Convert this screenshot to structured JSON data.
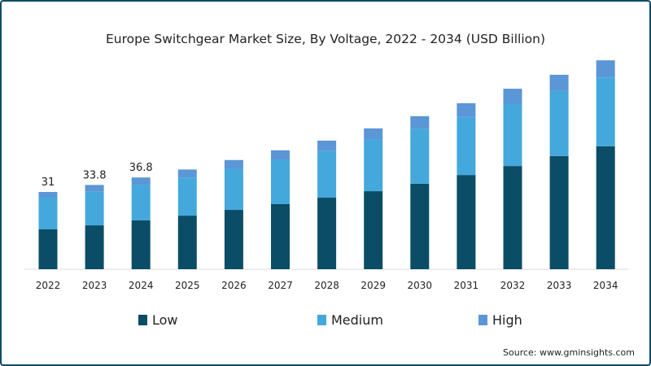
{
  "chart_data": {
    "type": "bar",
    "stacked": true,
    "title": "Europe Switchgear Market Size, By Voltage, 2022 - 2034 (USD Billion)",
    "xlabel": "",
    "ylabel": "",
    "ylim": [
      0,
      95
    ],
    "grid": false,
    "legend_position": "bottom",
    "categories": [
      "2022",
      "2023",
      "2024",
      "2025",
      "2026",
      "2027",
      "2028",
      "2029",
      "2030",
      "2031",
      "2032",
      "2033",
      "2034"
    ],
    "series": [
      {
        "name": "Low",
        "color": "#0b4d66",
        "values": [
          16,
          17.6,
          19.6,
          21.5,
          23.8,
          26.1,
          28.7,
          31.3,
          34.3,
          37.8,
          41.4,
          45.4,
          49.3
        ]
      },
      {
        "name": "Medium",
        "color": "#45a8dc",
        "values": [
          12.7,
          13.6,
          14.3,
          15.3,
          16.5,
          17.8,
          18.7,
          20.6,
          22.1,
          23.3,
          25.0,
          26.2,
          27.6
        ]
      },
      {
        "name": "High",
        "color": "#5b96d6",
        "values": [
          2.3,
          2.6,
          2.9,
          3.2,
          3.5,
          3.8,
          4.2,
          4.6,
          5.0,
          5.5,
          6.0,
          6.4,
          6.9
        ]
      }
    ],
    "data_labels": [
      {
        "index": 0,
        "text": "31"
      },
      {
        "index": 1,
        "text": "33.8"
      },
      {
        "index": 2,
        "text": "36.8"
      }
    ],
    "source": "Source: www.gminsights.com"
  }
}
